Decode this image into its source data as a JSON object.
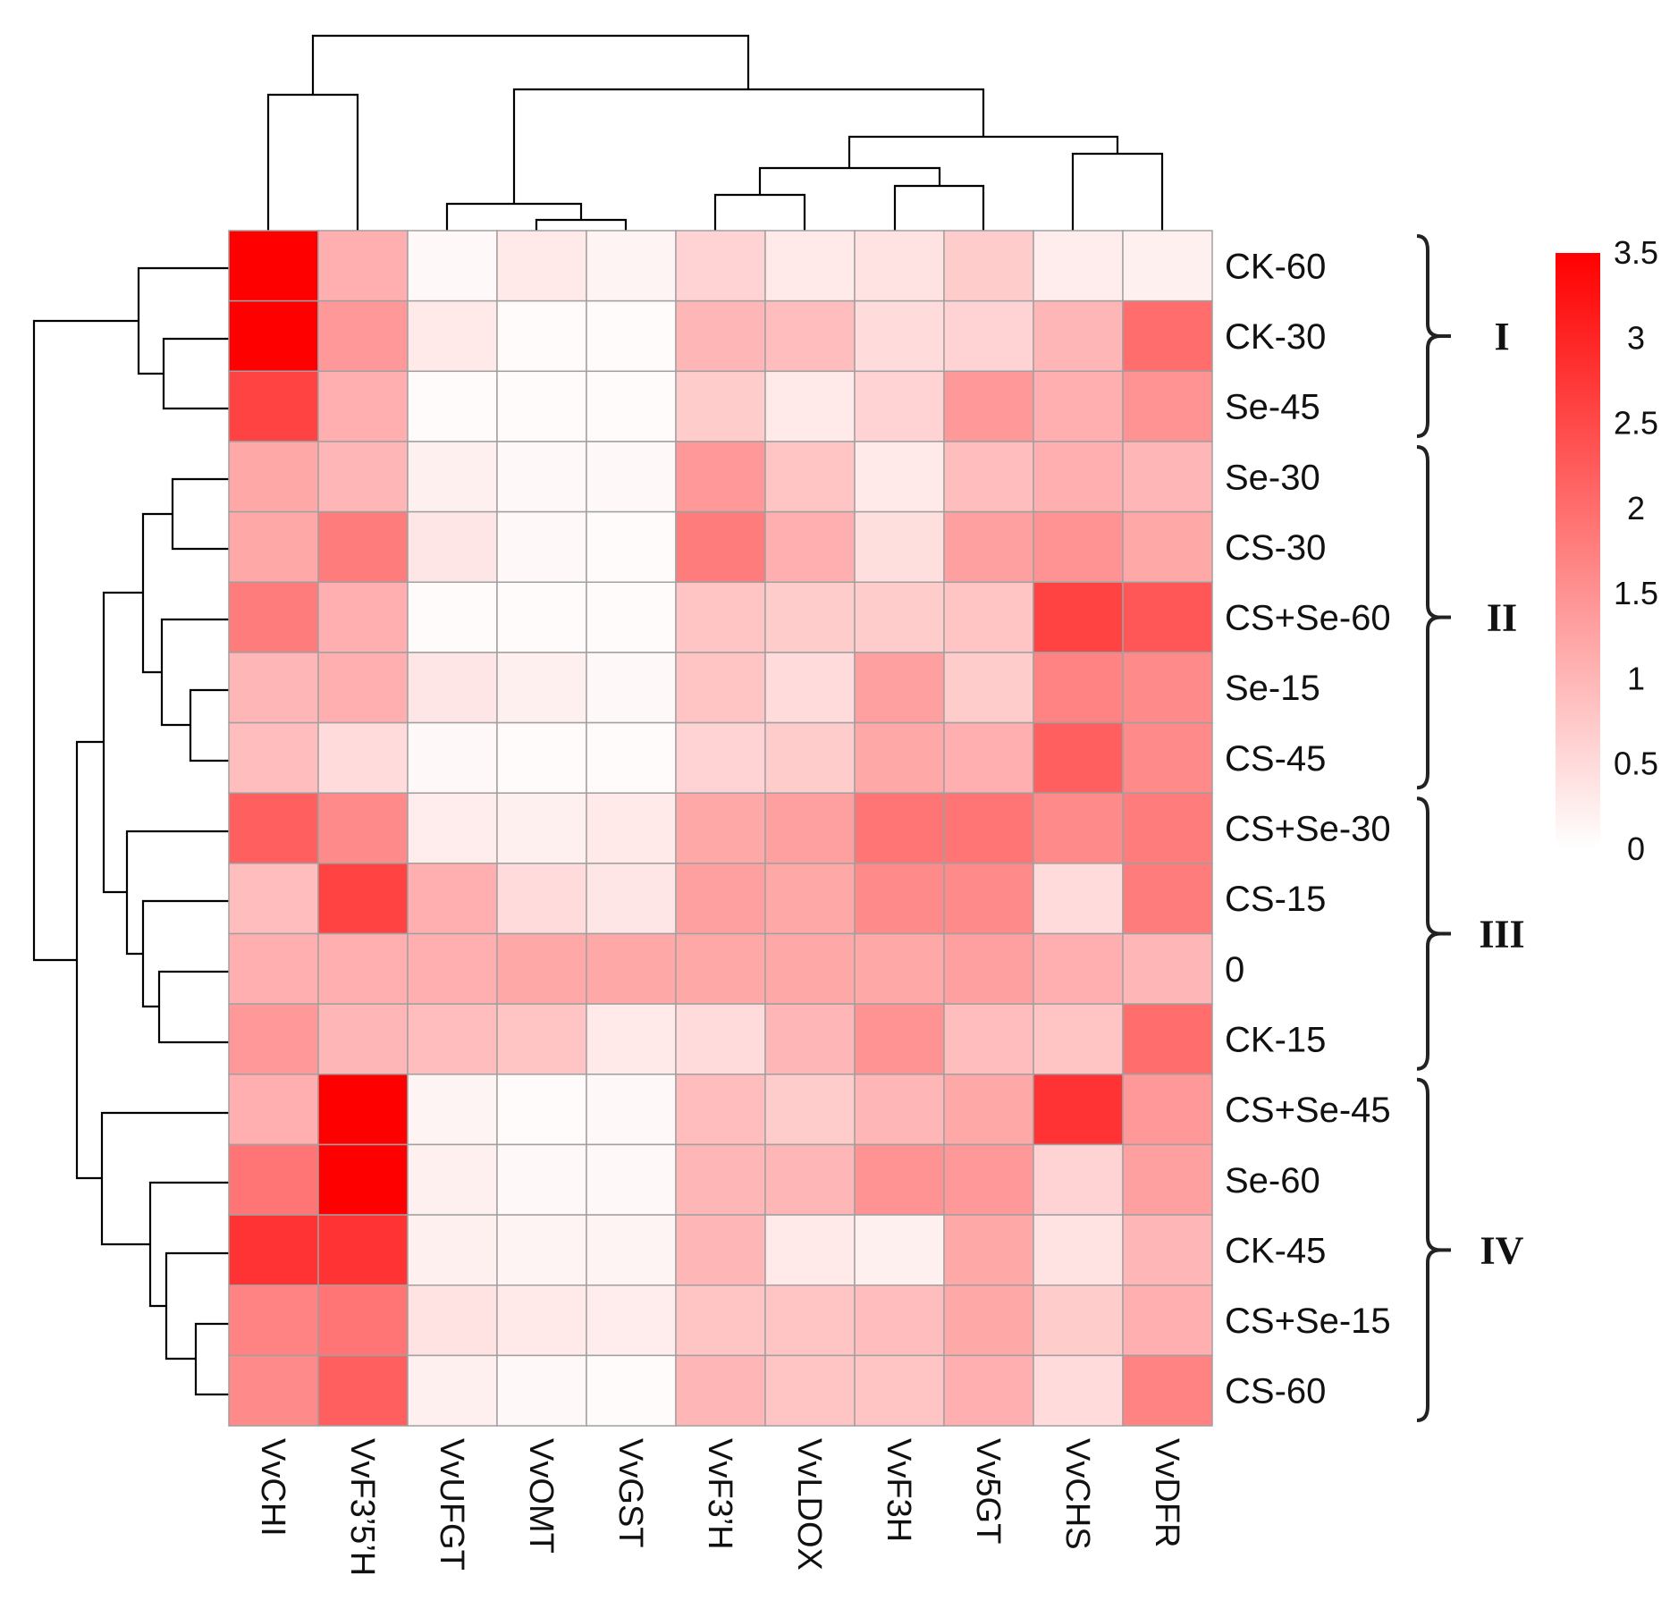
{
  "chart_data": {
    "type": "heatmap",
    "title": "",
    "columns": [
      "VvCHI",
      "VvF3’5’H",
      "VvUFGT",
      "VvOMT",
      "VvGST",
      "VvF3’H",
      "VvLDOX",
      "VvF3H",
      "Vv5GT",
      "VvCHS",
      "VvDFR"
    ],
    "rows": [
      "CK-60",
      "CK-30",
      "Se-45",
      "Se-30",
      "CS-30",
      "CS+Se-60",
      "Se-15",
      "CS-45",
      "CS+Se-30",
      "CS-15",
      "0",
      "CK-15",
      "CS+Se-45",
      "Se-60",
      "CK-45",
      "CS+Se-15",
      "CS-60"
    ],
    "values": [
      [
        3.5,
        1.1,
        0.1,
        0.3,
        0.15,
        0.6,
        0.3,
        0.4,
        0.7,
        0.25,
        0.2
      ],
      [
        3.5,
        1.4,
        0.3,
        0.05,
        0.05,
        1.0,
        0.9,
        0.5,
        0.6,
        1.0,
        2.0
      ],
      [
        2.6,
        1.1,
        0.05,
        0.05,
        0.05,
        0.7,
        0.3,
        0.6,
        1.4,
        1.1,
        1.5
      ],
      [
        1.2,
        1.0,
        0.2,
        0.1,
        0.1,
        1.4,
        0.8,
        0.3,
        0.9,
        1.1,
        1.0
      ],
      [
        1.2,
        1.8,
        0.35,
        0.1,
        0.05,
        1.8,
        1.1,
        0.45,
        1.3,
        1.5,
        1.2
      ],
      [
        1.8,
        1.1,
        0.05,
        0.05,
        0.05,
        0.8,
        0.7,
        0.7,
        0.8,
        2.6,
        2.3
      ],
      [
        1.0,
        1.1,
        0.35,
        0.2,
        0.1,
        0.8,
        0.5,
        1.3,
        0.7,
        1.7,
        1.6
      ],
      [
        0.9,
        0.5,
        0.1,
        0.05,
        0.05,
        0.6,
        0.7,
        1.2,
        1.1,
        2.2,
        1.6
      ],
      [
        2.2,
        1.6,
        0.25,
        0.2,
        0.3,
        1.2,
        1.3,
        1.9,
        1.9,
        1.6,
        1.8
      ],
      [
        0.9,
        2.6,
        1.1,
        0.5,
        0.35,
        1.3,
        1.2,
        1.6,
        1.6,
        0.5,
        1.8
      ],
      [
        1.1,
        1.1,
        1.1,
        1.2,
        1.2,
        1.2,
        1.2,
        1.2,
        1.3,
        1.1,
        1.0
      ],
      [
        1.4,
        1.0,
        0.9,
        0.8,
        0.3,
        0.5,
        1.0,
        1.5,
        0.9,
        0.8,
        2.0
      ],
      [
        1.1,
        3.5,
        0.15,
        0.05,
        0.1,
        0.9,
        0.7,
        1.0,
        1.2,
        2.8,
        1.4
      ],
      [
        1.9,
        3.5,
        0.2,
        0.1,
        0.1,
        1.0,
        1.0,
        1.5,
        1.4,
        0.6,
        1.3
      ],
      [
        2.8,
        2.8,
        0.2,
        0.15,
        0.15,
        1.0,
        0.3,
        0.2,
        1.2,
        0.4,
        1.0
      ],
      [
        1.7,
        1.9,
        0.4,
        0.3,
        0.25,
        0.8,
        0.8,
        0.9,
        1.2,
        0.7,
        1.1
      ],
      [
        1.6,
        2.2,
        0.2,
        0.1,
        0.05,
        1.0,
        0.8,
        0.8,
        1.1,
        0.5,
        1.7
      ]
    ],
    "color_scale": {
      "min": 0,
      "max": 3.5,
      "low_color": "#ffffff",
      "high_color": "#ff0000",
      "ticks": [
        "0",
        "0.5",
        "1",
        "1.5",
        "2",
        "2.5",
        "3",
        "3.5"
      ]
    },
    "groups": [
      {
        "label": "I",
        "rows": [
          "CK-60",
          "CK-30",
          "Se-45"
        ]
      },
      {
        "label": "II",
        "rows": [
          "Se-30",
          "CS-30",
          "CS+Se-60",
          "Se-15",
          "CS-45"
        ]
      },
      {
        "label": "III",
        "rows": [
          "CS+Se-30",
          "CS-15",
          "0",
          "CK-15"
        ]
      },
      {
        "label": "IV",
        "rows": [
          "CS+Se-45",
          "Se-60",
          "CK-45",
          "CS+Se-15",
          "CS-60"
        ]
      }
    ],
    "column_dendrogram": true,
    "row_dendrogram": true,
    "grid_line_color": "#a0a0a0",
    "dendrogram_color": "#000000"
  }
}
